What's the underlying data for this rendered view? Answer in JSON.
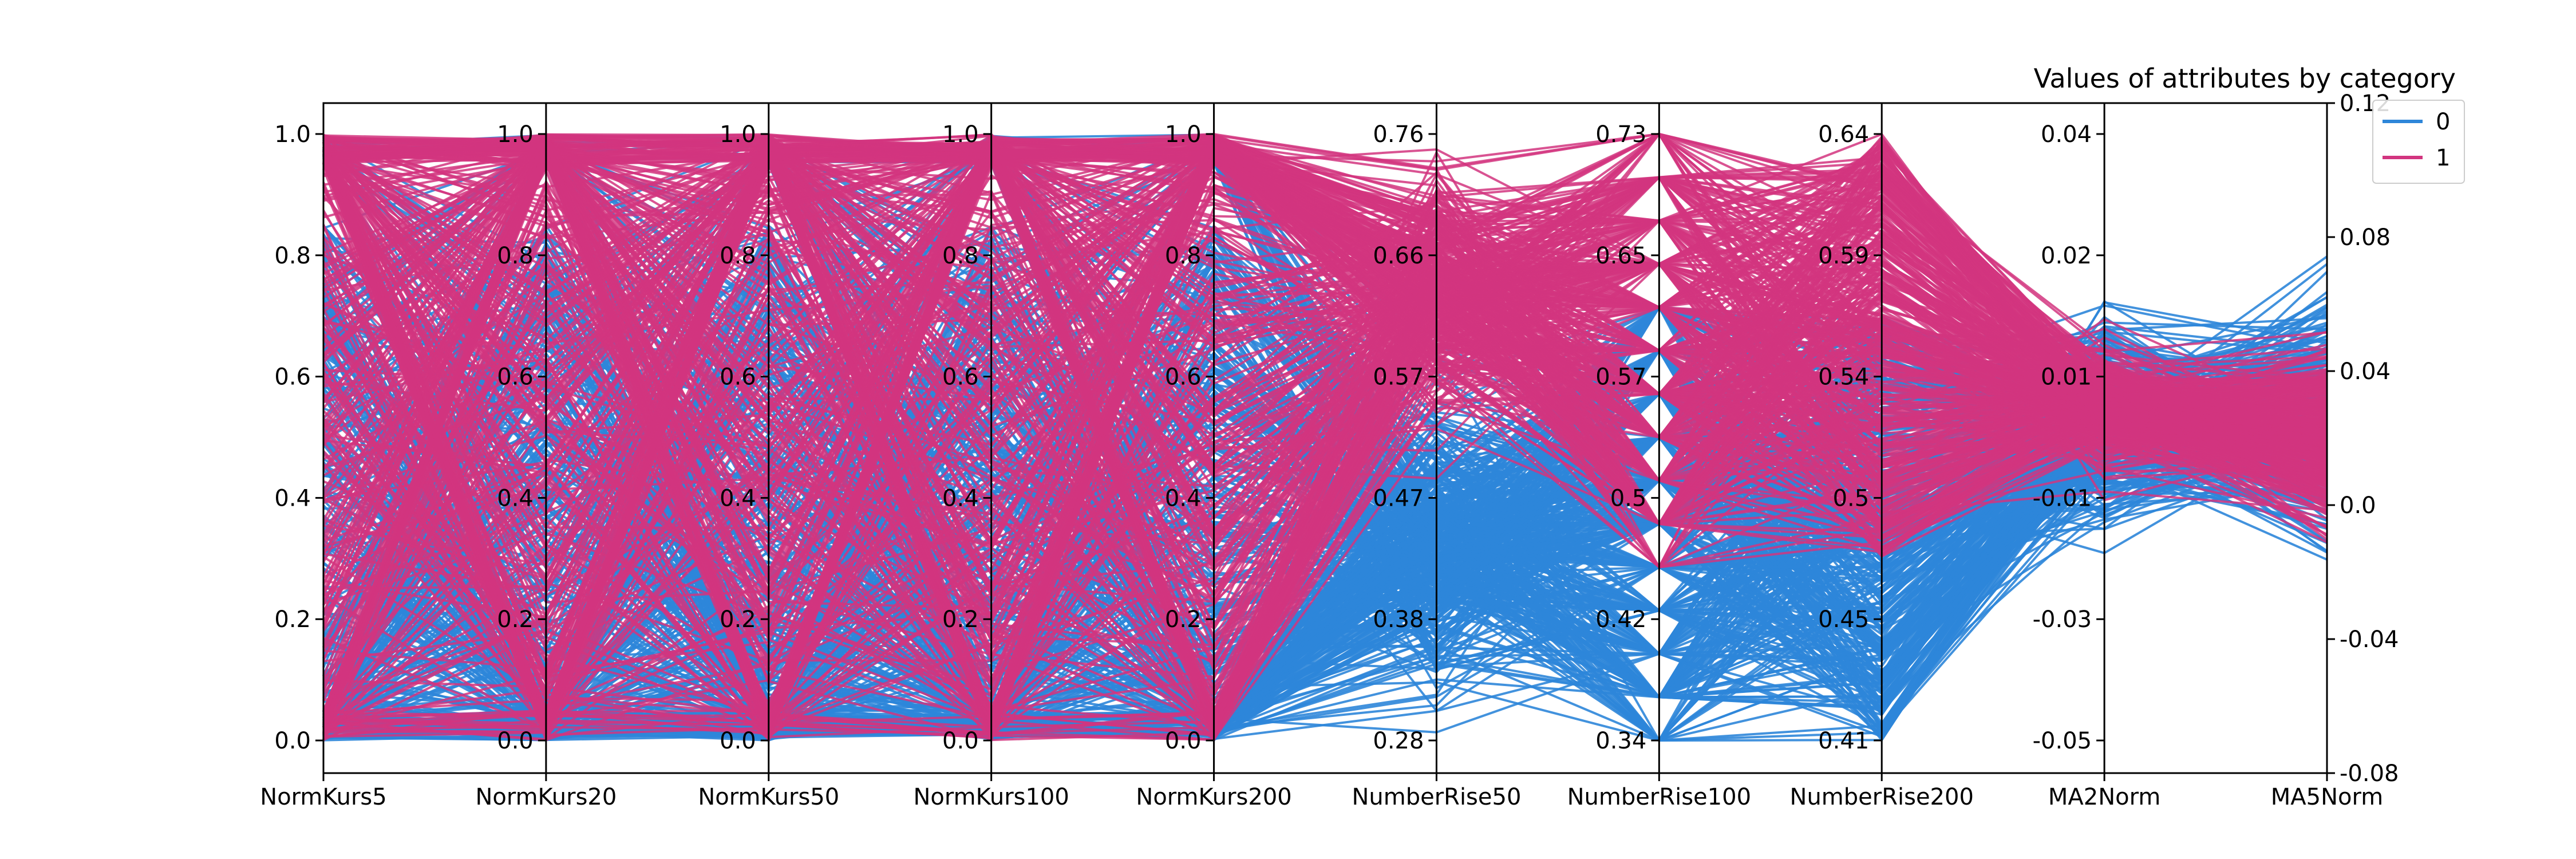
{
  "chart_data": {
    "type": "parallel-coordinates",
    "title": "Values of attributes by category",
    "axes": [
      {
        "name": "NormKurs5",
        "ticks": [
          "0.0",
          "0.2",
          "0.4",
          "0.6",
          "0.8",
          "1.0"
        ]
      },
      {
        "name": "NormKurs20",
        "ticks": [
          "0.0",
          "0.2",
          "0.4",
          "0.6",
          "0.8",
          "1.0"
        ]
      },
      {
        "name": "NormKurs50",
        "ticks": [
          "0.0",
          "0.2",
          "0.4",
          "0.6",
          "0.8",
          "1.0"
        ]
      },
      {
        "name": "NormKurs100",
        "ticks": [
          "0.0",
          "0.2",
          "0.4",
          "0.6",
          "0.8",
          "1.0"
        ]
      },
      {
        "name": "NormKurs200",
        "ticks": [
          "0.0",
          "0.2",
          "0.4",
          "0.6",
          "0.8",
          "1.0"
        ]
      },
      {
        "name": "NumberRise50",
        "ticks": [
          "0.28",
          "0.38",
          "0.47",
          "0.57",
          "0.66",
          "0.76"
        ]
      },
      {
        "name": "NumberRise100",
        "ticks": [
          "0.34",
          "0.42",
          "0.5",
          "0.57",
          "0.65",
          "0.73"
        ]
      },
      {
        "name": "NumberRise200",
        "ticks": [
          "0.41",
          "0.45",
          "0.5",
          "0.54",
          "0.59",
          "0.64"
        ]
      },
      {
        "name": "MA2Norm",
        "ticks": [
          "-0.05",
          "-0.03",
          "-0.01",
          "0.01",
          "0.02",
          "0.04"
        ]
      },
      {
        "name": "MA5Norm",
        "ticks": []
      }
    ],
    "right_axis_ticks": [
      "-0.08",
      "-0.04",
      "0.0",
      "0.04",
      "0.08",
      "0.12"
    ],
    "series": [
      {
        "name": "0",
        "color": "#2e86d9"
      },
      {
        "name": "1",
        "color": "#d2357f"
      }
    ],
    "legend_position": "top-right",
    "grid": false
  }
}
